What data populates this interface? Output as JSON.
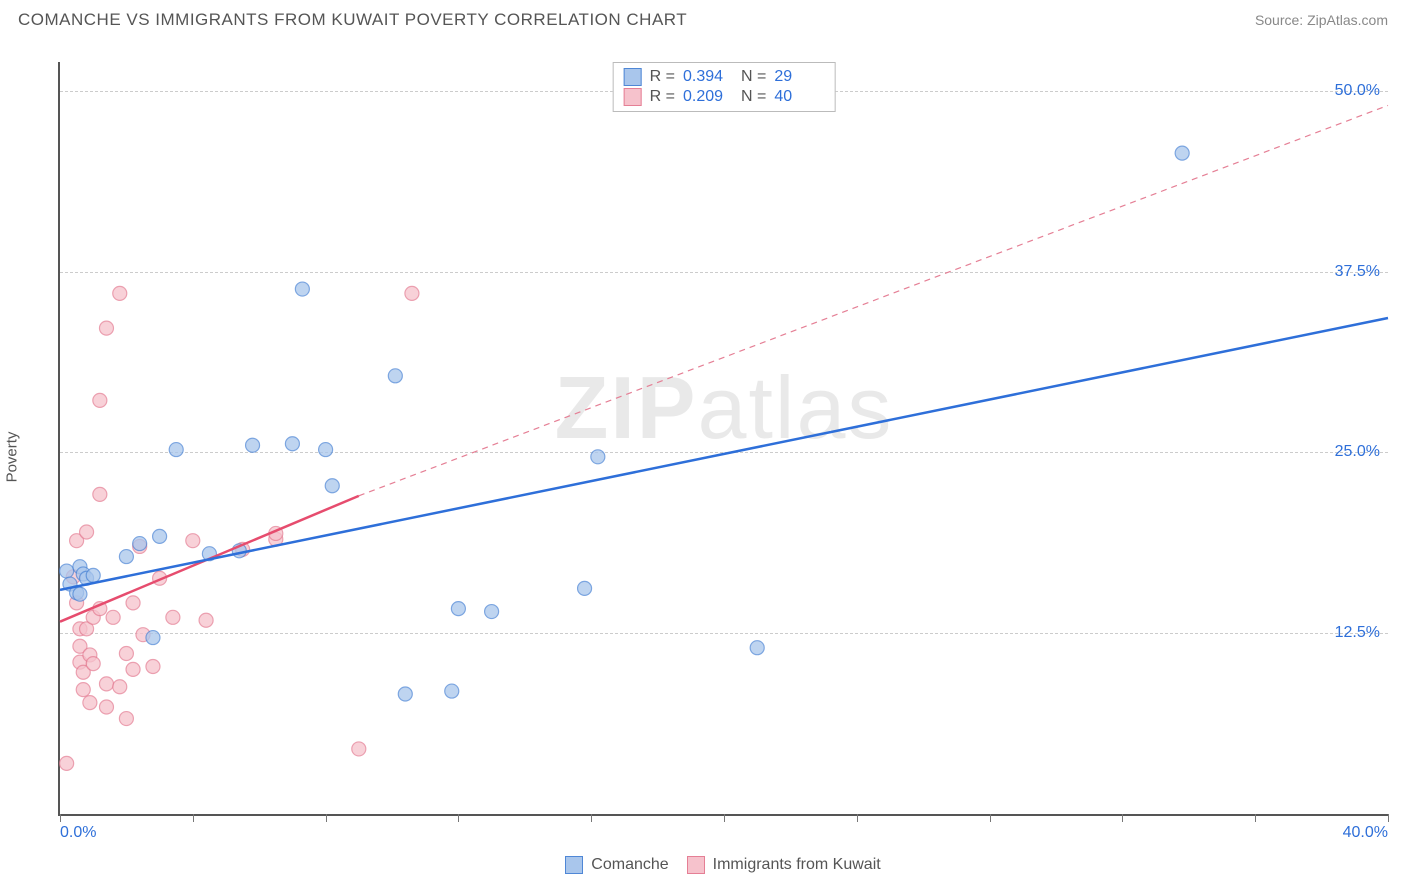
{
  "header": {
    "title": "COMANCHE VS IMMIGRANTS FROM KUWAIT POVERTY CORRELATION CHART",
    "source": "Source: ZipAtlas.com"
  },
  "axes": {
    "y_label": "Poverty",
    "x_min": 0.0,
    "x_max": 40.0,
    "y_min": 0.0,
    "y_max": 52.0,
    "y_ticks": [
      12.5,
      25.0,
      37.5,
      50.0
    ],
    "y_tick_labels": [
      "12.5%",
      "25.0%",
      "37.5%",
      "50.0%"
    ],
    "x_minor_ticks": [
      0,
      4,
      8,
      12,
      16,
      20,
      24,
      28,
      32,
      36,
      40
    ],
    "x_end_labels": [
      "0.0%",
      "40.0%"
    ]
  },
  "colors": {
    "blue_fill": "#a9c6ec",
    "blue_stroke": "#4f87d6",
    "pink_fill": "#f6c2cc",
    "pink_stroke": "#e57f95",
    "blue_line": "#2e6fd9",
    "pink_line": "#e64c6e",
    "grid": "#cccccc",
    "axis": "#555555",
    "tick_text": "#2e6fd9",
    "text": "#555555",
    "background": "#ffffff"
  },
  "marker_radius": 7,
  "stats_legend": [
    {
      "color_key": "blue",
      "r_label": "R =",
      "r": "0.394",
      "n_label": "N =",
      "n": "29"
    },
    {
      "color_key": "pink",
      "r_label": "R =",
      "r": "0.209",
      "n_label": "N =",
      "n": "40"
    }
  ],
  "bottom_legend": [
    {
      "color_key": "blue",
      "label": "Comanche"
    },
    {
      "color_key": "pink",
      "label": "Immigrants from Kuwait"
    }
  ],
  "watermark": {
    "part1": "ZIP",
    "part2": "atlas"
  },
  "series": {
    "blue": [
      [
        0.2,
        16.8
      ],
      [
        0.3,
        15.9
      ],
      [
        0.5,
        15.3
      ],
      [
        0.6,
        17.1
      ],
      [
        0.6,
        15.2
      ],
      [
        0.7,
        16.6
      ],
      [
        0.8,
        16.3
      ],
      [
        1.0,
        16.5
      ],
      [
        2.0,
        17.8
      ],
      [
        2.4,
        18.7
      ],
      [
        2.8,
        12.2
      ],
      [
        3.0,
        19.2
      ],
      [
        3.5,
        25.2
      ],
      [
        4.5,
        18.0
      ],
      [
        5.4,
        18.2
      ],
      [
        5.8,
        25.5
      ],
      [
        7.0,
        25.6
      ],
      [
        7.3,
        36.3
      ],
      [
        8.0,
        25.2
      ],
      [
        8.2,
        22.7
      ],
      [
        10.1,
        30.3
      ],
      [
        10.4,
        8.3
      ],
      [
        12.0,
        14.2
      ],
      [
        11.8,
        8.5
      ],
      [
        13.0,
        14.0
      ],
      [
        15.8,
        15.6
      ],
      [
        16.2,
        24.7
      ],
      [
        21.0,
        11.5
      ],
      [
        33.8,
        45.7
      ]
    ],
    "pink": [
      [
        0.2,
        3.5
      ],
      [
        0.4,
        16.4
      ],
      [
        0.5,
        18.9
      ],
      [
        0.5,
        14.6
      ],
      [
        0.6,
        12.8
      ],
      [
        0.6,
        11.6
      ],
      [
        0.6,
        10.5
      ],
      [
        0.7,
        9.8
      ],
      [
        0.7,
        8.6
      ],
      [
        0.8,
        19.5
      ],
      [
        0.8,
        12.8
      ],
      [
        0.9,
        11.0
      ],
      [
        0.9,
        7.7
      ],
      [
        1.0,
        13.6
      ],
      [
        1.0,
        10.4
      ],
      [
        1.2,
        28.6
      ],
      [
        1.2,
        22.1
      ],
      [
        1.2,
        14.2
      ],
      [
        1.4,
        33.6
      ],
      [
        1.4,
        9.0
      ],
      [
        1.4,
        7.4
      ],
      [
        1.6,
        13.6
      ],
      [
        1.8,
        36.0
      ],
      [
        1.8,
        8.8
      ],
      [
        2.0,
        11.1
      ],
      [
        2.0,
        6.6
      ],
      [
        2.2,
        14.6
      ],
      [
        2.2,
        10.0
      ],
      [
        2.4,
        18.5
      ],
      [
        2.5,
        12.4
      ],
      [
        2.8,
        10.2
      ],
      [
        3.0,
        16.3
      ],
      [
        3.4,
        13.6
      ],
      [
        4.0,
        18.9
      ],
      [
        4.4,
        13.4
      ],
      [
        5.5,
        18.3
      ],
      [
        6.5,
        19.0
      ],
      [
        9.0,
        4.5
      ],
      [
        10.6,
        36.0
      ],
      [
        6.5,
        19.4
      ]
    ]
  },
  "trend_lines": {
    "blue_solid": {
      "x1": 0.0,
      "y1": 15.5,
      "x2": 40.0,
      "y2": 34.3
    },
    "pink_solid": {
      "x1": 0.0,
      "y1": 13.3,
      "x2": 9.0,
      "y2": 22.0
    },
    "pink_dashed": {
      "x1": 9.0,
      "y1": 22.0,
      "x2": 40.0,
      "y2": 49.0
    }
  }
}
